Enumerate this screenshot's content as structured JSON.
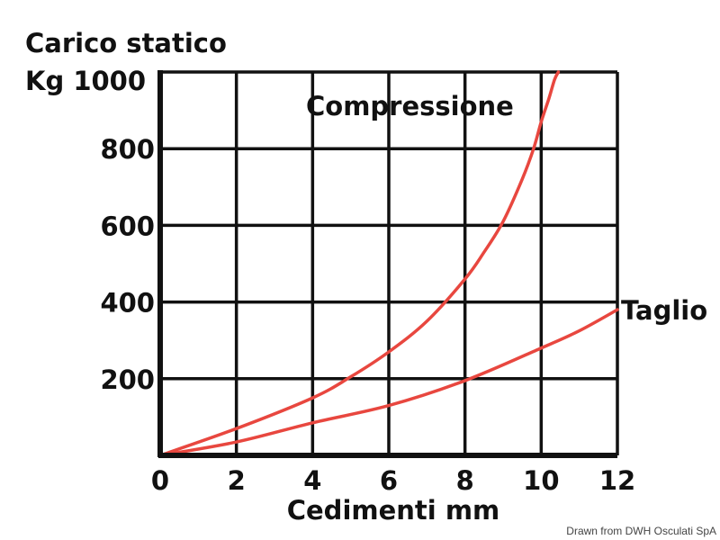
{
  "chart_data": {
    "type": "line",
    "ylabel_line1": "Carico statico",
    "ylabel_line2": "Kg 1000",
    "xlabel": "Cedimenti mm",
    "xlim": [
      0,
      12
    ],
    "ylim": [
      0,
      1000
    ],
    "x_ticks": [
      "0",
      "2",
      "4",
      "6",
      "8",
      "10",
      "12"
    ],
    "y_ticks": [
      "200",
      "400",
      "600",
      "800"
    ],
    "grid": true,
    "line_color": "#e8473f",
    "series": [
      {
        "name": "Compressione",
        "x": [
          0,
          2,
          4,
          5,
          6,
          7,
          8,
          8.5,
          9,
          9.5,
          9.8,
          10,
          10.2,
          10.35,
          10.45
        ],
        "y": [
          0,
          70,
          150,
          205,
          270,
          350,
          460,
          530,
          610,
          720,
          800,
          870,
          930,
          980,
          1000
        ]
      },
      {
        "name": "Taglio",
        "x": [
          0,
          2,
          4,
          6,
          8,
          10,
          11,
          12
        ],
        "y": [
          0,
          35,
          85,
          130,
          195,
          280,
          325,
          380
        ]
      }
    ],
    "credit": "Drawn from DWH Osculati SpA"
  }
}
